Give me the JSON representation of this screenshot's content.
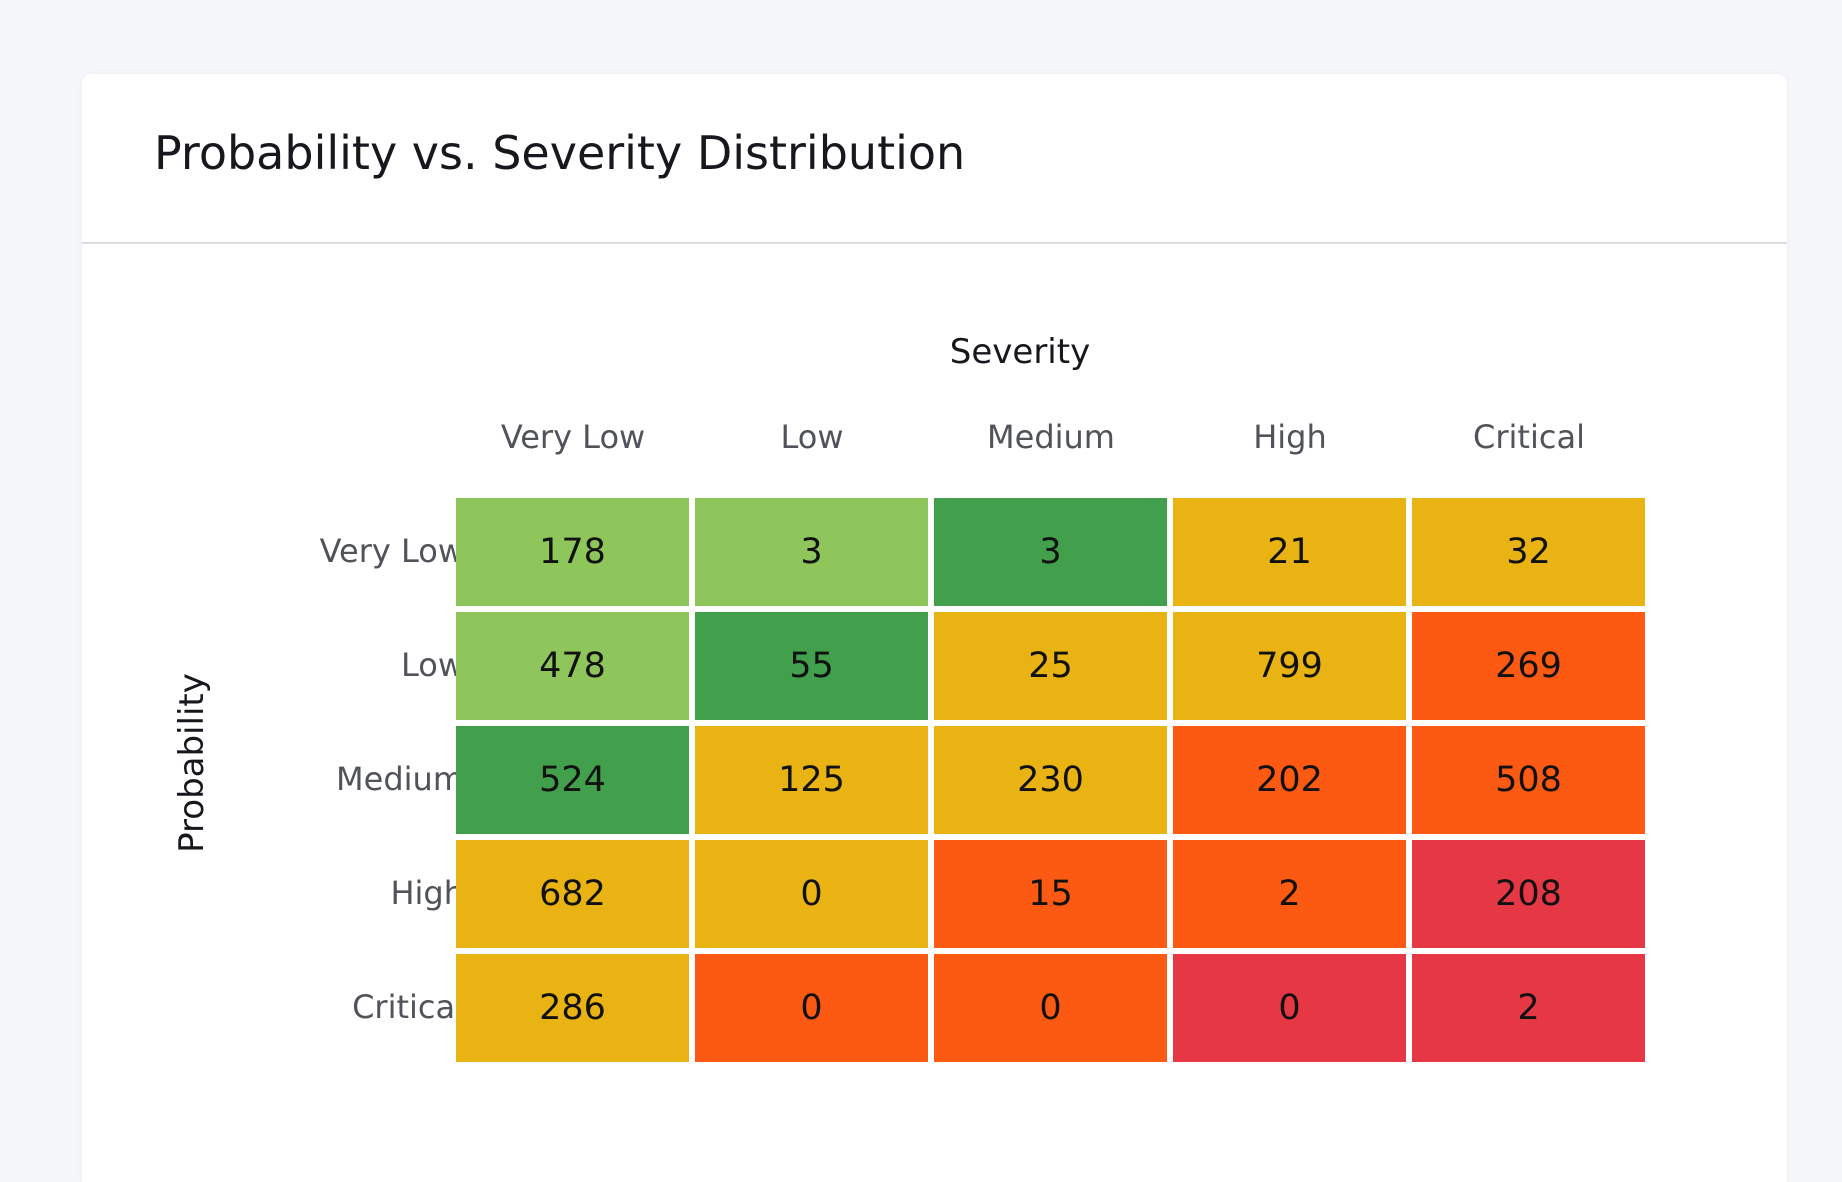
{
  "card": {
    "title": "Probability vs. Severity Distribution"
  },
  "chart_data": {
    "type": "heatmap",
    "title": "Probability vs. Severity Distribution",
    "xlabel": "Severity",
    "ylabel": "Probability",
    "x_categories": [
      "Very Low",
      "Low",
      "Medium",
      "High",
      "Critical"
    ],
    "y_categories": [
      "Very Low",
      "Low",
      "Medium",
      "High",
      "Critical"
    ],
    "values": [
      [
        178,
        3,
        3,
        21,
        32
      ],
      [
        478,
        55,
        25,
        799,
        269
      ],
      [
        524,
        125,
        230,
        202,
        508
      ],
      [
        682,
        0,
        15,
        2,
        208
      ],
      [
        286,
        0,
        0,
        0,
        2
      ]
    ],
    "palette": {
      "light-green": "#8fc65b",
      "dark-green": "#42a04d",
      "yellow": "#e9b413",
      "orange": "#fc5a12",
      "red": "#e53744"
    },
    "cell_colors": [
      [
        "light-green",
        "light-green",
        "dark-green",
        "yellow",
        "yellow"
      ],
      [
        "light-green",
        "dark-green",
        "yellow",
        "yellow",
        "orange"
      ],
      [
        "dark-green",
        "yellow",
        "yellow",
        "orange",
        "orange"
      ],
      [
        "yellow",
        "yellow",
        "orange",
        "orange",
        "red"
      ],
      [
        "yellow",
        "orange",
        "orange",
        "red",
        "red"
      ]
    ]
  }
}
